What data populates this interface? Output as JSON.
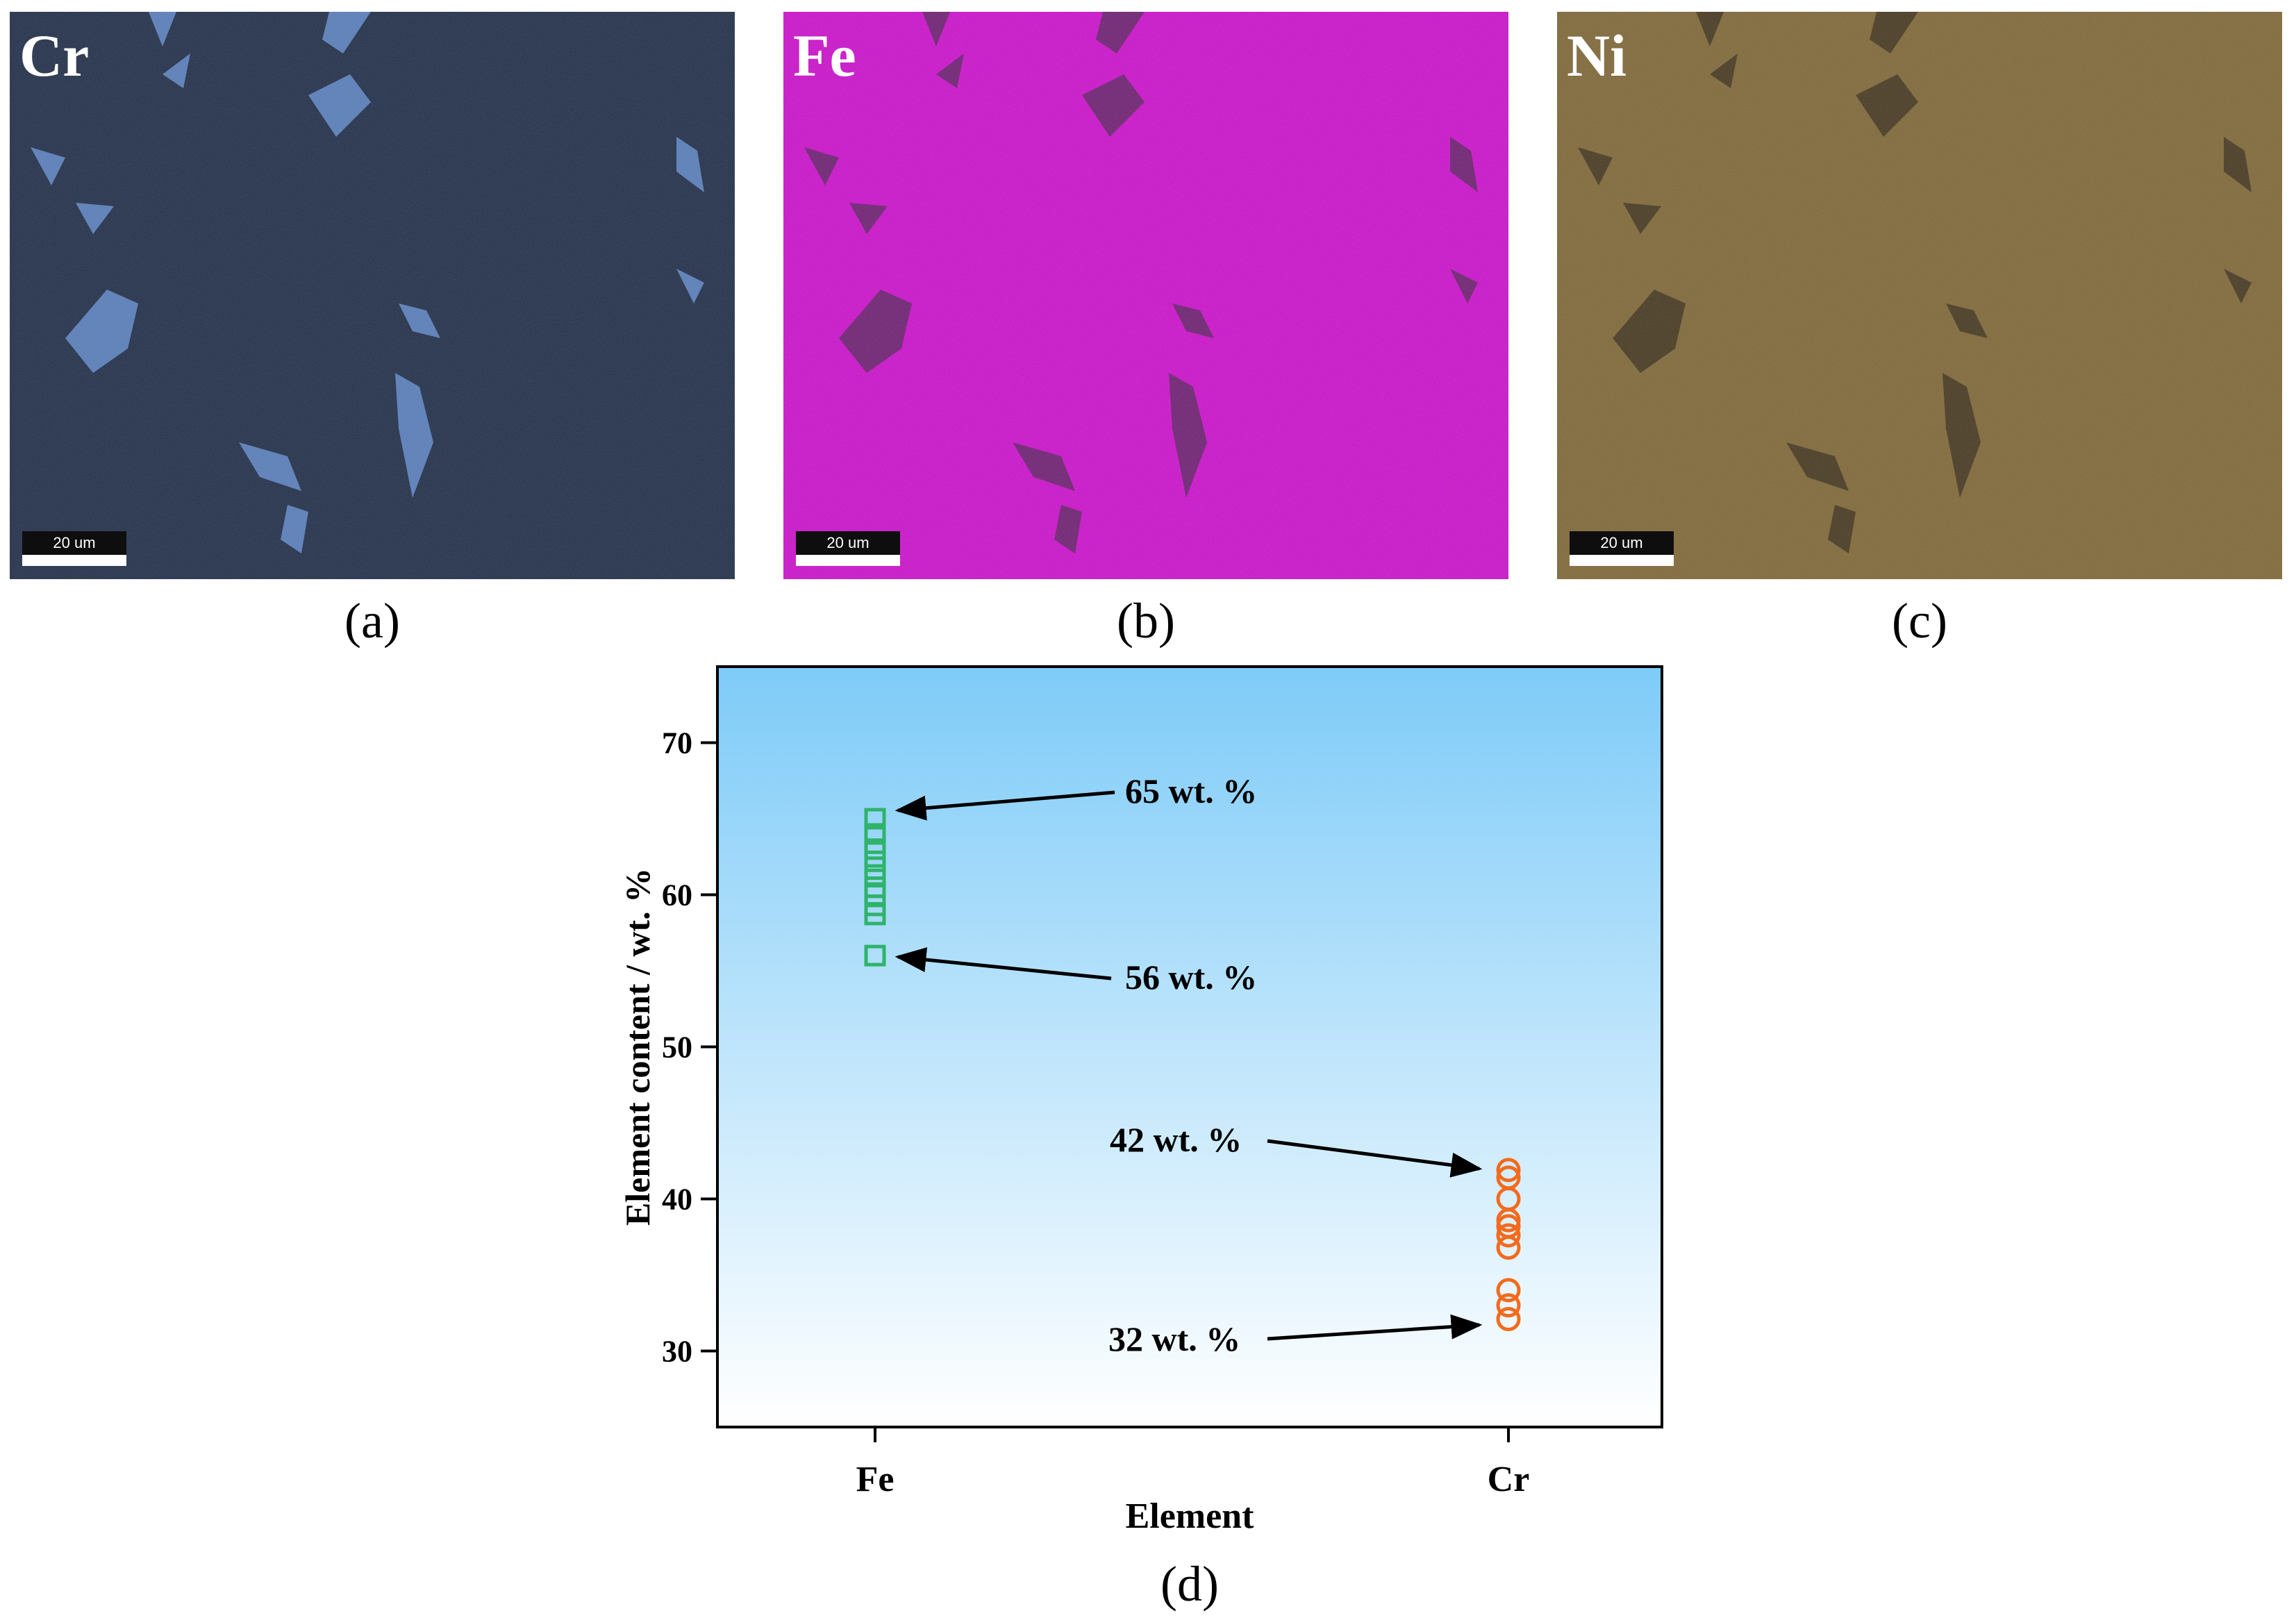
{
  "panels": [
    {
      "id": "a",
      "element": "Cr",
      "scale_label": "20 um",
      "caption": "(a)",
      "base_color": "#1d2a44",
      "phase_color": "#5d86c7"
    },
    {
      "id": "b",
      "element": "Fe",
      "scale_label": "20 um",
      "caption": "(b)",
      "base_color": "#c40ec4",
      "phase_color": "#5a1f5e"
    },
    {
      "id": "c",
      "element": "Ni",
      "scale_label": "20 um",
      "caption": "(c)",
      "base_color": "#7a6233",
      "phase_color": "#3a2e1a"
    }
  ],
  "chart_caption": "(d)",
  "chart_data": {
    "type": "scatter",
    "xlabel": "Element",
    "ylabel": "Element content / wt. %",
    "categories": [
      "Fe",
      "Cr"
    ],
    "ylim": [
      25,
      75
    ],
    "yticks": [
      30,
      40,
      50,
      60,
      70
    ],
    "background_gradient": [
      "#7ecbf8",
      "#ffffff"
    ],
    "series": [
      {
        "category": "Fe",
        "marker": "square",
        "color": "#2fb36b",
        "values": [
          56,
          58.7,
          59.3,
          60.0,
          60.5,
          61.3,
          62.2,
          63.0,
          64.0,
          65.0
        ]
      },
      {
        "category": "Cr",
        "marker": "circle",
        "color": "#f26b1d",
        "values": [
          32.1,
          33.0,
          34.0,
          36.8,
          37.6,
          38.2,
          38.6,
          40.0,
          41.4,
          41.9
        ]
      }
    ],
    "annotations": [
      {
        "text": "65 wt. %",
        "target_category": "Fe",
        "target_value": 65
      },
      {
        "text": "56 wt. %",
        "target_category": "Fe",
        "target_value": 56
      },
      {
        "text": "42 wt. %",
        "target_category": "Cr",
        "target_value": 42
      },
      {
        "text": "32 wt. %",
        "target_category": "Cr",
        "target_value": 32
      }
    ]
  }
}
